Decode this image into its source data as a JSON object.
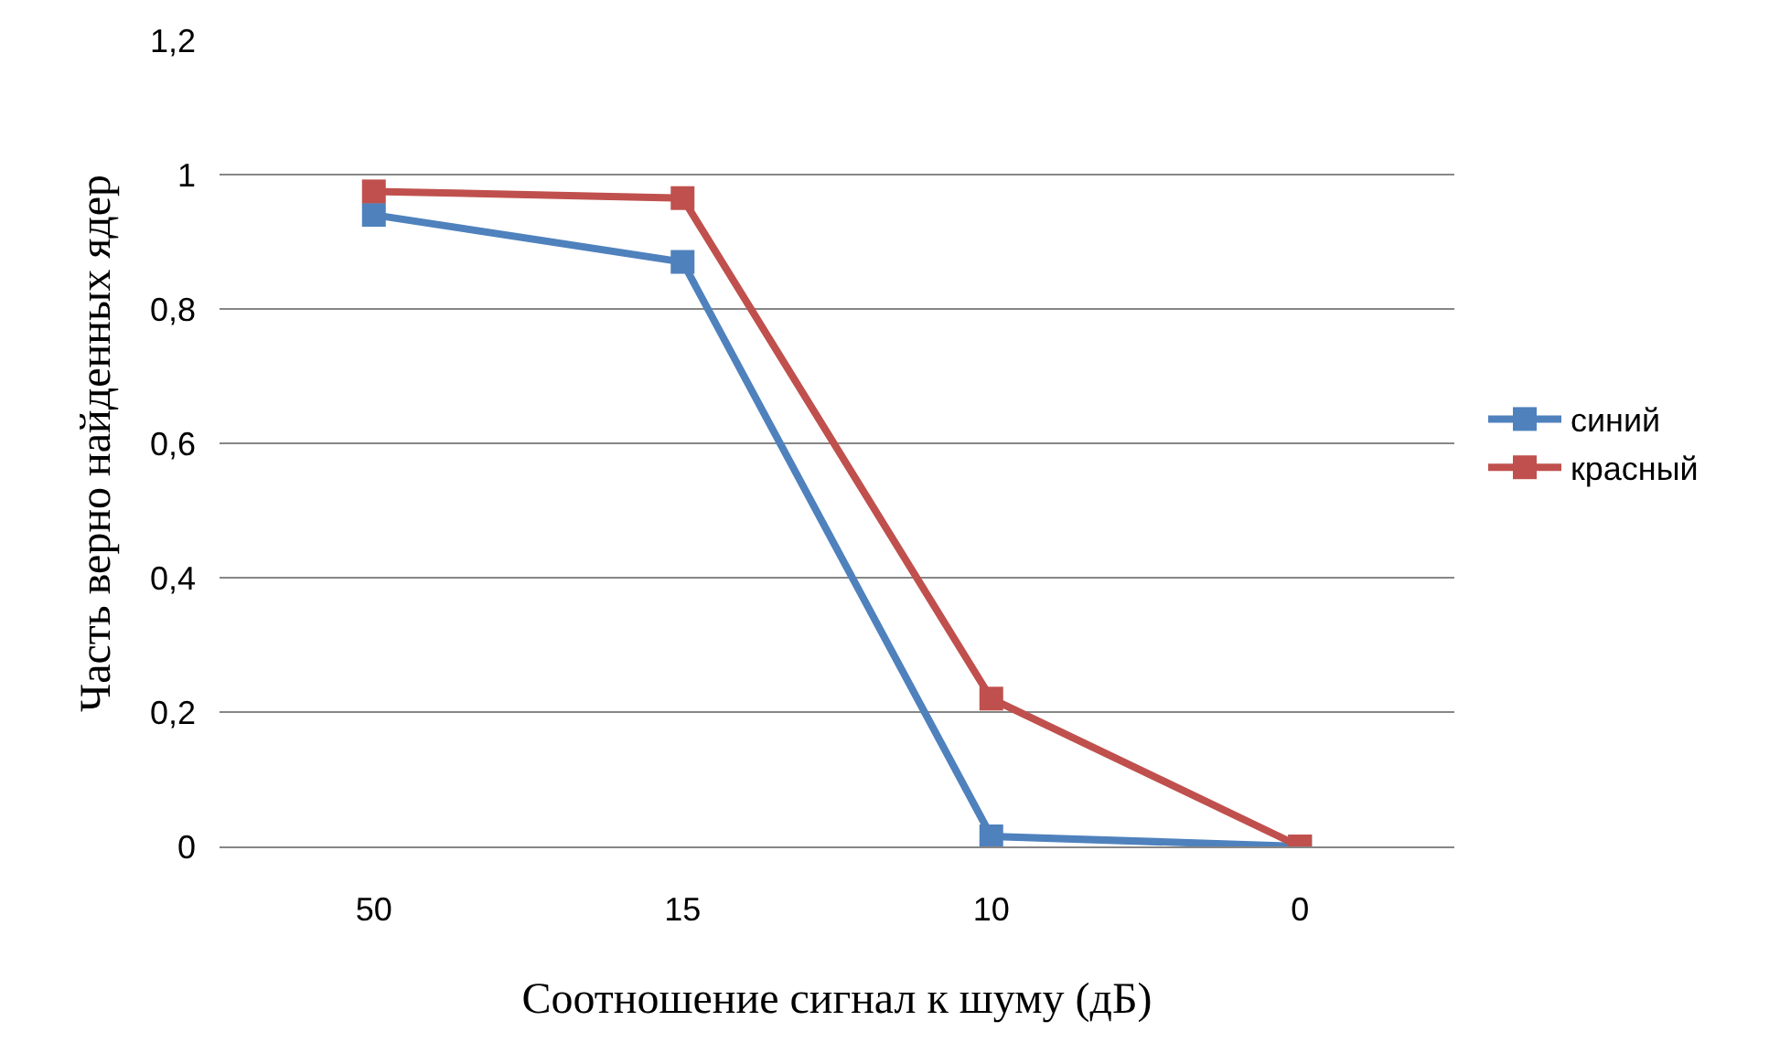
{
  "chart_data": {
    "type": "line",
    "xlabel": "Соотношение сигнал к шуму (дБ)",
    "ylabel": "Часть верно найденных ядер",
    "categories": [
      "50",
      "15",
      "10",
      "0"
    ],
    "series": [
      {
        "name": "синий",
        "color": "#4f81bd",
        "values": [
          0.94,
          0.87,
          0.015,
          0
        ]
      },
      {
        "name": "красный",
        "color": "#c0504d",
        "values": [
          0.975,
          0.965,
          0.22,
          0
        ]
      }
    ],
    "ylim": [
      0,
      1.2
    ],
    "yticks": [
      0,
      {
        "value": 0.2,
        "label": "0,2"
      },
      {
        "value": 0.4,
        "label": "0,4"
      },
      {
        "value": 0.6,
        "label": "0,6"
      },
      {
        "value": 0.8,
        "label": "0,8"
      },
      1,
      {
        "value": 1.2,
        "label": "1,2"
      }
    ],
    "grid": "y",
    "legend": "right",
    "marker": "square",
    "line_style": "solid"
  }
}
